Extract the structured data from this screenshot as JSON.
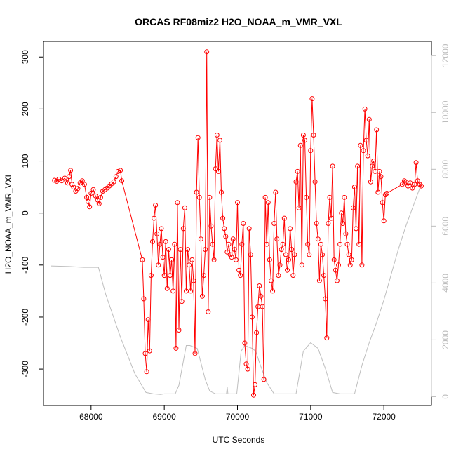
{
  "chart_data": {
    "type": "line",
    "title": "ORCAS RF08miz2 H2O_NOAA_m_VMR_VXL",
    "xlabel": "UTC Seconds",
    "ylabel": "H2O_NOAA_m_VMR_VXL",
    "xlim": [
      67350,
      72650
    ],
    "ylim": [
      -370,
      330
    ],
    "y2lim": [
      -310,
      12500
    ],
    "x_ticks": [
      68000,
      69000,
      70000,
      71000,
      72000
    ],
    "y_ticks": [
      -300,
      -200,
      -100,
      0,
      100,
      200,
      300
    ],
    "y2_ticks": [
      0,
      2000,
      4000,
      6000,
      8000,
      10000,
      12000
    ],
    "grid": false,
    "legend": "none",
    "colors": {
      "series": "#ff0000",
      "altitude": "#bebebe",
      "axis": "#000000",
      "y2_axis": "#bdbdbd"
    },
    "series": [
      {
        "style": "line+open-circles",
        "color": "#ff0000",
        "points": [
          [
            67500,
            63
          ],
          [
            67530,
            61
          ],
          [
            67560,
            65
          ],
          [
            67600,
            62
          ],
          [
            67640,
            67
          ],
          [
            67680,
            58
          ],
          [
            67700,
            70
          ],
          [
            67720,
            82
          ],
          [
            67740,
            55
          ],
          [
            67760,
            50
          ],
          [
            67790,
            42
          ],
          [
            67820,
            47
          ],
          [
            67850,
            58
          ],
          [
            67880,
            62
          ],
          [
            67910,
            55
          ],
          [
            67940,
            30
          ],
          [
            67960,
            22
          ],
          [
            67980,
            12
          ],
          [
            68000,
            38
          ],
          [
            68030,
            45
          ],
          [
            68060,
            33
          ],
          [
            68090,
            25
          ],
          [
            68110,
            18
          ],
          [
            68130,
            30
          ],
          [
            68160,
            42
          ],
          [
            68190,
            45
          ],
          [
            68220,
            48
          ],
          [
            68250,
            52
          ],
          [
            68280,
            56
          ],
          [
            68310,
            60
          ],
          [
            68340,
            70
          ],
          [
            68370,
            80
          ],
          [
            68400,
            82
          ],
          [
            68420,
            62
          ],
          [
            68700,
            -90
          ],
          [
            68720,
            -165
          ],
          [
            68740,
            -270
          ],
          [
            68760,
            -305
          ],
          [
            68780,
            -205
          ],
          [
            68800,
            -265
          ],
          [
            68820,
            -120
          ],
          [
            68840,
            -55
          ],
          [
            68860,
            -10
          ],
          [
            68880,
            15
          ],
          [
            68900,
            -40
          ],
          [
            68920,
            -100
          ],
          [
            68940,
            -60
          ],
          [
            68960,
            -30
          ],
          [
            68980,
            -85
          ],
          [
            69000,
            -120
          ],
          [
            69020,
            -55
          ],
          [
            69040,
            -145
          ],
          [
            69060,
            -70
          ],
          [
            69080,
            -120
          ],
          [
            69100,
            -90
          ],
          [
            69120,
            -150
          ],
          [
            69140,
            -60
          ],
          [
            69160,
            -260
          ],
          [
            69180,
            20
          ],
          [
            69200,
            -225
          ],
          [
            69220,
            -70
          ],
          [
            69240,
            -170
          ],
          [
            69260,
            -30
          ],
          [
            69280,
            10
          ],
          [
            69300,
            -150
          ],
          [
            69320,
            -70
          ],
          [
            69340,
            -100
          ],
          [
            69360,
            -150
          ],
          [
            69380,
            -90
          ],
          [
            69400,
            -130
          ],
          [
            69420,
            -270
          ],
          [
            69440,
            40
          ],
          [
            69460,
            145
          ],
          [
            69480,
            30
          ],
          [
            69500,
            -50
          ],
          [
            69520,
            -160
          ],
          [
            69540,
            -120
          ],
          [
            69560,
            -70
          ],
          [
            69580,
            310
          ],
          [
            69600,
            -190
          ],
          [
            69620,
            30
          ],
          [
            69640,
            -25
          ],
          [
            69660,
            -60
          ],
          [
            69680,
            -90
          ],
          [
            69700,
            85
          ],
          [
            69720,
            150
          ],
          [
            69740,
            80
          ],
          [
            69760,
            140
          ],
          [
            69780,
            40
          ],
          [
            69800,
            -10
          ],
          [
            69820,
            -30
          ],
          [
            69840,
            -45
          ],
          [
            69860,
            -75
          ],
          [
            69880,
            -60
          ],
          [
            69900,
            -80
          ],
          [
            69920,
            -85
          ],
          [
            69940,
            -50
          ],
          [
            69960,
            -70
          ],
          [
            69980,
            -90
          ],
          [
            70000,
            20
          ],
          [
            70020,
            -110
          ],
          [
            70040,
            -120
          ],
          [
            70060,
            -60
          ],
          [
            70080,
            -20
          ],
          [
            70100,
            -250
          ],
          [
            70120,
            -290
          ],
          [
            70140,
            -300
          ],
          [
            70160,
            -30
          ],
          [
            70180,
            -80
          ],
          [
            70200,
            -200
          ],
          [
            70220,
            -350
          ],
          [
            70240,
            -330
          ],
          [
            70260,
            -230
          ],
          [
            70280,
            -180
          ],
          [
            70300,
            -140
          ],
          [
            70320,
            -160
          ],
          [
            70340,
            -180
          ],
          [
            70360,
            -320
          ],
          [
            70380,
            30
          ],
          [
            70400,
            -60
          ],
          [
            70420,
            20
          ],
          [
            70440,
            -90
          ],
          [
            70460,
            -130
          ],
          [
            70480,
            -150
          ],
          [
            70500,
            -20
          ],
          [
            70520,
            40
          ],
          [
            70540,
            -50
          ],
          [
            70560,
            -120
          ],
          [
            70580,
            -100
          ],
          [
            70600,
            -70
          ],
          [
            70620,
            -60
          ],
          [
            70640,
            -10
          ],
          [
            70660,
            -80
          ],
          [
            70680,
            -110
          ],
          [
            70700,
            -90
          ],
          [
            70720,
            -30
          ],
          [
            70740,
            -70
          ],
          [
            70760,
            -120
          ],
          [
            70780,
            -80
          ],
          [
            70800,
            60
          ],
          [
            70820,
            80
          ],
          [
            70840,
            10
          ],
          [
            70860,
            130
          ],
          [
            70880,
            -100
          ],
          [
            70900,
            150
          ],
          [
            70920,
            140
          ],
          [
            70940,
            30
          ],
          [
            70960,
            -60
          ],
          [
            70980,
            -80
          ],
          [
            71000,
            120
          ],
          [
            71020,
            220
          ],
          [
            71040,
            150
          ],
          [
            71060,
            60
          ],
          [
            71080,
            -20
          ],
          [
            71100,
            -50
          ],
          [
            71120,
            -130
          ],
          [
            71140,
            -60
          ],
          [
            71160,
            -80
          ],
          [
            71180,
            -120
          ],
          [
            71200,
            -165
          ],
          [
            71220,
            -240
          ],
          [
            71240,
            -20
          ],
          [
            71260,
            30
          ],
          [
            71280,
            -10
          ],
          [
            71300,
            90
          ],
          [
            71320,
            -90
          ],
          [
            71340,
            -110
          ],
          [
            71360,
            -130
          ],
          [
            71380,
            -100
          ],
          [
            71400,
            -60
          ],
          [
            71420,
            0
          ],
          [
            71440,
            -20
          ],
          [
            71460,
            30
          ],
          [
            71480,
            -40
          ],
          [
            71500,
            -60
          ],
          [
            71520,
            -80
          ],
          [
            71540,
            -100
          ],
          [
            71560,
            -90
          ],
          [
            71580,
            10
          ],
          [
            71600,
            50
          ],
          [
            71620,
            -30
          ],
          [
            71640,
            90
          ],
          [
            71660,
            -60
          ],
          [
            71680,
            130
          ],
          [
            71700,
            -100
          ],
          [
            71720,
            120
          ],
          [
            71740,
            200
          ],
          [
            71760,
            140
          ],
          [
            71780,
            110
          ],
          [
            71800,
            180
          ],
          [
            71820,
            60
          ],
          [
            71840,
            90
          ],
          [
            71860,
            100
          ],
          [
            71880,
            80
          ],
          [
            71900,
            160
          ],
          [
            71920,
            40
          ],
          [
            71940,
            80
          ],
          [
            71960,
            70
          ],
          [
            71980,
            20
          ],
          [
            72000,
            -15
          ],
          [
            72020,
            35
          ],
          [
            72040,
            38
          ],
          [
            72250,
            55
          ],
          [
            72280,
            62
          ],
          [
            72300,
            60
          ],
          [
            72330,
            52
          ],
          [
            72360,
            58
          ],
          [
            72390,
            48
          ],
          [
            72420,
            55
          ],
          [
            72440,
            97
          ],
          [
            72460,
            62
          ],
          [
            72490,
            55
          ],
          [
            72510,
            52
          ]
        ]
      },
      {
        "style": "line",
        "color": "#bebebe",
        "axis": "right",
        "points": [
          [
            67450,
            4600
          ],
          [
            67700,
            4580
          ],
          [
            67900,
            4550
          ],
          [
            68100,
            4550
          ],
          [
            68200,
            3600
          ],
          [
            68400,
            2100
          ],
          [
            68600,
            800
          ],
          [
            68750,
            150
          ],
          [
            68850,
            100
          ],
          [
            68950,
            80
          ],
          [
            69000,
            100
          ],
          [
            69150,
            100
          ],
          [
            69200,
            400
          ],
          [
            69300,
            1800
          ],
          [
            69350,
            1800
          ],
          [
            69450,
            1700
          ],
          [
            69500,
            1200
          ],
          [
            69560,
            600
          ],
          [
            69620,
            200
          ],
          [
            69700,
            100
          ],
          [
            69850,
            100
          ],
          [
            69860,
            350
          ],
          [
            69870,
            100
          ],
          [
            69990,
            100
          ],
          [
            70050,
            1600
          ],
          [
            70100,
            1800
          ],
          [
            70200,
            1700
          ],
          [
            70250,
            1600
          ],
          [
            70300,
            1200
          ],
          [
            70400,
            500
          ],
          [
            70500,
            100
          ],
          [
            70700,
            100
          ],
          [
            70800,
            100
          ],
          [
            70900,
            1600
          ],
          [
            71000,
            1900
          ],
          [
            71100,
            1700
          ],
          [
            71200,
            1000
          ],
          [
            71300,
            150
          ],
          [
            71400,
            100
          ],
          [
            71500,
            100
          ],
          [
            71600,
            100
          ],
          [
            71700,
            1100
          ],
          [
            71800,
            1900
          ],
          [
            71900,
            2600
          ],
          [
            72000,
            3400
          ],
          [
            72100,
            4300
          ],
          [
            72200,
            5200
          ],
          [
            72300,
            6000
          ],
          [
            72400,
            6700
          ],
          [
            72500,
            7400
          ]
        ]
      }
    ]
  }
}
